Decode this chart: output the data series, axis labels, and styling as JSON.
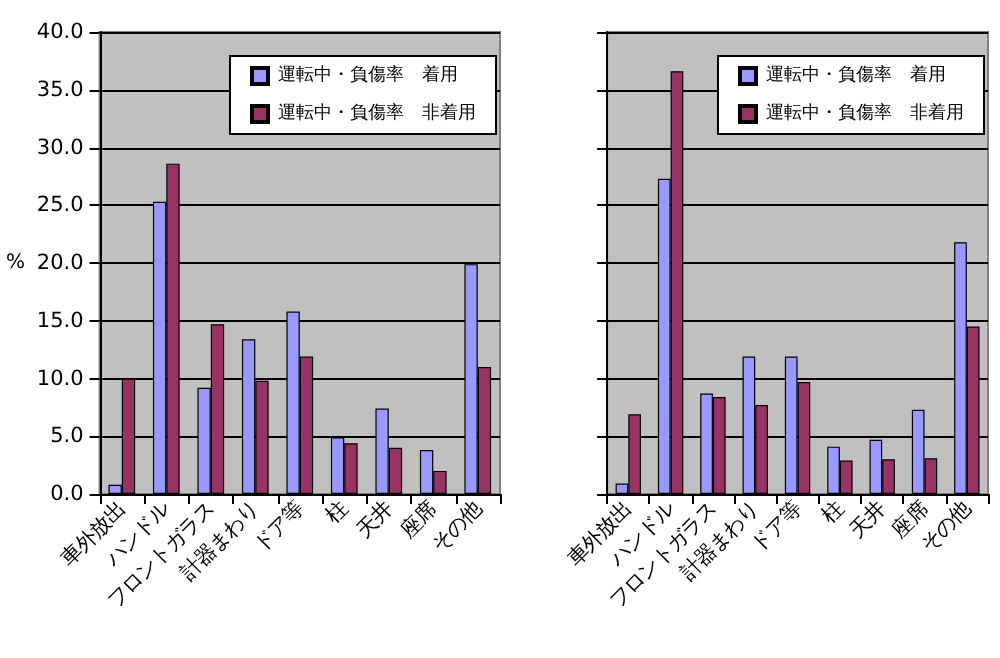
{
  "chart_data": [
    {
      "type": "bar",
      "ylabel": "%",
      "categories": [
        "車外放出",
        "ハンドル",
        "フロントガラス",
        "計器まわり",
        "ドア等",
        "柱",
        "天井",
        "座席",
        "その他"
      ],
      "series": [
        {
          "name": "運転中・負傷率　着用",
          "color": "#9999ff",
          "values": [
            0.8,
            25.3,
            9.2,
            13.4,
            15.8,
            4.9,
            7.4,
            3.8,
            19.9
          ]
        },
        {
          "name": "運転中・負傷率　非着用",
          "color": "#993366",
          "values": [
            10.0,
            28.6,
            14.7,
            9.8,
            11.9,
            4.4,
            4.0,
            2.0,
            11.0
          ]
        }
      ],
      "ylim": [
        0,
        40
      ],
      "yticks": [
        {
          "value": 0,
          "label": "0.0"
        },
        {
          "value": 5,
          "label": "5.0"
        },
        {
          "value": 10,
          "label": "10.0"
        },
        {
          "value": 15,
          "label": "15.0"
        },
        {
          "value": 20,
          "label": "20.0"
        },
        {
          "value": 25,
          "label": "25.0"
        },
        {
          "value": 30,
          "label": "30.0"
        },
        {
          "value": 35,
          "label": "35.0"
        },
        {
          "value": 40,
          "label": "40.0"
        }
      ],
      "grid": "y",
      "legend": "top right"
    },
    {
      "type": "bar",
      "categories": [
        "車外放出",
        "ハンドル",
        "フロントガラス",
        "計器まわり",
        "ドア等",
        "柱",
        "天井",
        "座席",
        "その他"
      ],
      "series": [
        {
          "name": "運転中・負傷率　着用",
          "color": "#9999ff",
          "values": [
            0.9,
            27.3,
            8.7,
            11.9,
            11.9,
            4.1,
            4.7,
            7.3,
            21.8
          ]
        },
        {
          "name": "運転中・負傷率　非着用",
          "color": "#993366",
          "values": [
            6.9,
            36.6,
            8.4,
            7.7,
            9.7,
            2.9,
            3.0,
            3.1,
            14.5
          ]
        }
      ],
      "ylim": [
        0,
        40
      ],
      "yticks": [
        {
          "value": 0,
          "label": null
        },
        {
          "value": 5,
          "label": null
        },
        {
          "value": 10,
          "label": null
        },
        {
          "value": 15,
          "label": null
        },
        {
          "value": 20,
          "label": null
        },
        {
          "value": 25,
          "label": null
        },
        {
          "value": 30,
          "label": null
        },
        {
          "value": 35,
          "label": null
        },
        {
          "value": 40,
          "label": null
        }
      ],
      "grid": "y",
      "legend": "top right",
      "tick_labels": "x"
    }
  ]
}
